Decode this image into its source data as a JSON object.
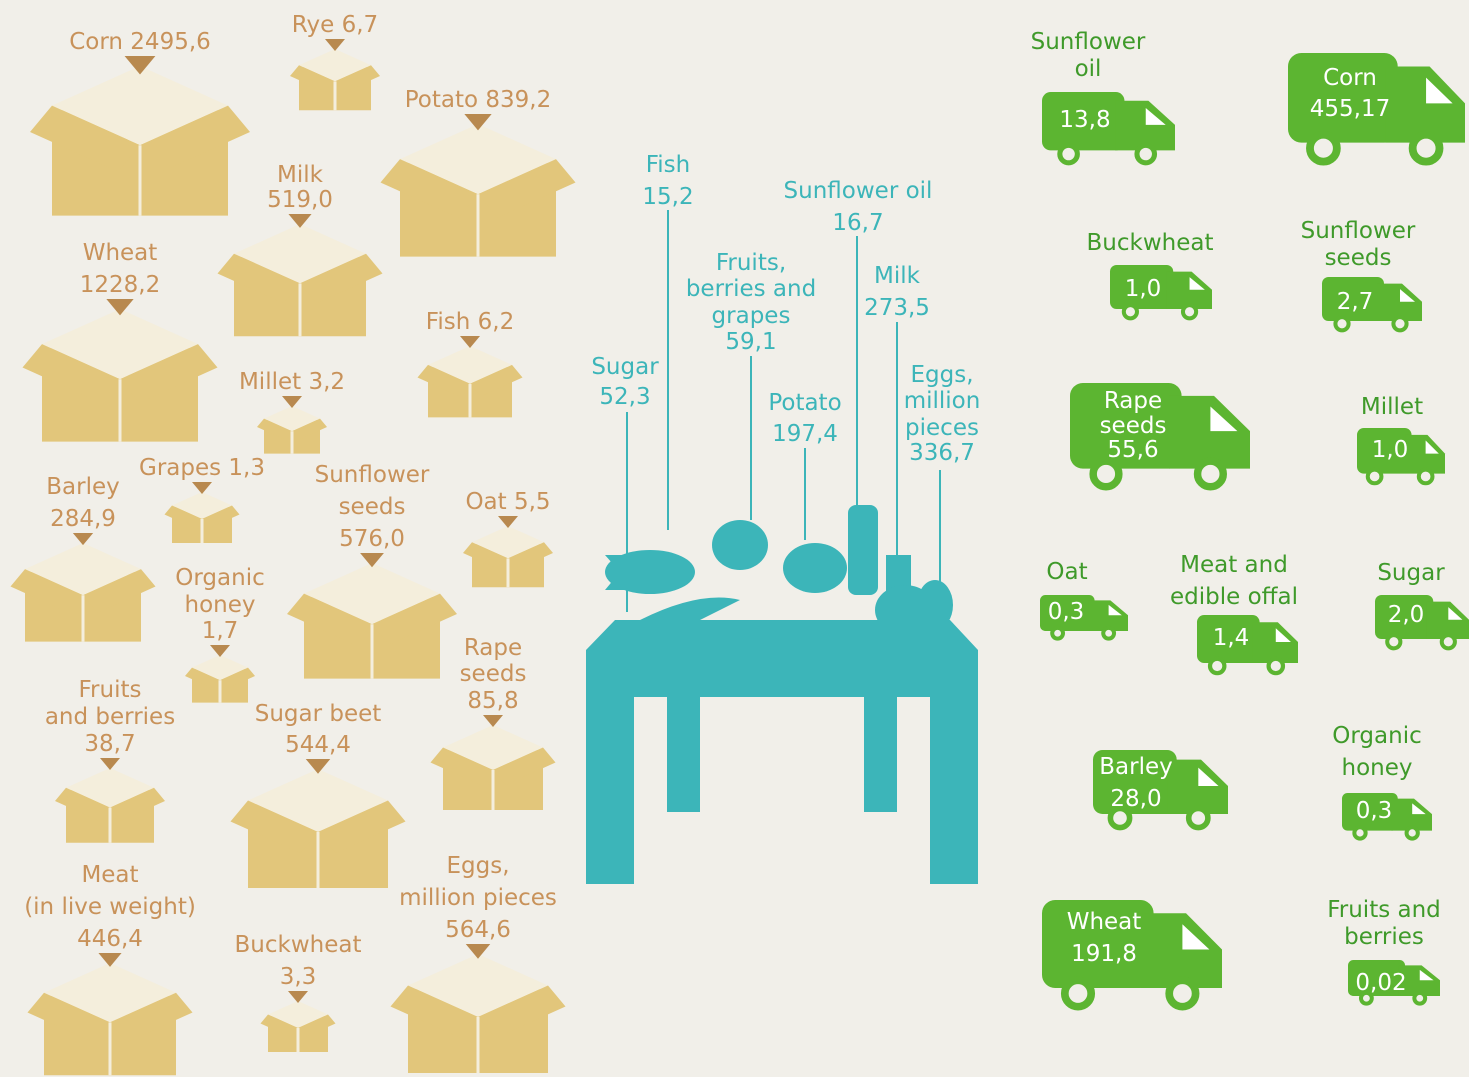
{
  "production": {
    "items": [
      {
        "label": [
          "Corn"
        ],
        "value": "2495,6"
      },
      {
        "label": [
          "Rye"
        ],
        "value": "6,7"
      },
      {
        "label": [
          "Potato"
        ],
        "value": "839,2"
      },
      {
        "label": [
          "Milk"
        ],
        "value": "519,0"
      },
      {
        "label": [
          "Wheat"
        ],
        "value": "1228,2"
      },
      {
        "label": [
          "Fish"
        ],
        "value": "6,2"
      },
      {
        "label": [
          "Millet"
        ],
        "value": "3,2"
      },
      {
        "label": [
          "Grapes"
        ],
        "value": "1,3"
      },
      {
        "label": [
          "Barley"
        ],
        "value": "284,9"
      },
      {
        "label": [
          "Sunflower",
          "seeds"
        ],
        "value": "576,0"
      },
      {
        "label": [
          "Oat"
        ],
        "value": "5,5"
      },
      {
        "label": [
          "Organic",
          "honey"
        ],
        "value": "1,7"
      },
      {
        "label": [
          "Rape",
          "seeds"
        ],
        "value": "85,8"
      },
      {
        "label": [
          "Fruits",
          "and berries"
        ],
        "value": "38,7"
      },
      {
        "label": [
          "Sugar beet"
        ],
        "value": "544,4"
      },
      {
        "label": [
          "Meat",
          "(in live weight)"
        ],
        "value": "446,4"
      },
      {
        "label": [
          "Buckwheat"
        ],
        "value": "3,3"
      },
      {
        "label": [
          "Eggs,",
          "million pieces"
        ],
        "value": "564,6"
      }
    ]
  },
  "consumption": {
    "items": [
      {
        "label": [
          "Fish"
        ],
        "value": "15,2"
      },
      {
        "label": [
          "Sunflower oil"
        ],
        "value": "16,7"
      },
      {
        "label": [
          "Fruits,",
          "berries and",
          "grapes"
        ],
        "value": "59,1"
      },
      {
        "label": [
          "Milk"
        ],
        "value": "273,5"
      },
      {
        "label": [
          "Sugar"
        ],
        "value": "52,3"
      },
      {
        "label": [
          "Potato"
        ],
        "value": "197,4"
      },
      {
        "label": [
          "Eggs,",
          "million",
          "pieces"
        ],
        "value": "336,7"
      }
    ]
  },
  "export": {
    "items": [
      {
        "label": [
          "Sunflower",
          "oil"
        ],
        "value": "13,8"
      },
      {
        "label": [
          "Corn"
        ],
        "value": "455,17"
      },
      {
        "label": [
          "Buckwheat"
        ],
        "value": "1,0"
      },
      {
        "label": [
          "Sunflower",
          "seeds"
        ],
        "value": "2,7"
      },
      {
        "label": [
          "Rape",
          "seeds"
        ],
        "value": "55,6"
      },
      {
        "label": [
          "Millet"
        ],
        "value": "1,0"
      },
      {
        "label": [
          "Oat"
        ],
        "value": "0,3"
      },
      {
        "label": [
          "Meat and",
          "edible offal"
        ],
        "value": "1,4"
      },
      {
        "label": [
          "Sugar"
        ],
        "value": "2,0"
      },
      {
        "label": [
          "Organic",
          "honey"
        ],
        "value": "0,3"
      },
      {
        "label": [
          "Barley"
        ],
        "value": "28,0"
      },
      {
        "label": [
          "Wheat"
        ],
        "value": "191,8"
      },
      {
        "label": [
          "Fruits and",
          "berries"
        ],
        "value": "0,02"
      }
    ]
  }
}
